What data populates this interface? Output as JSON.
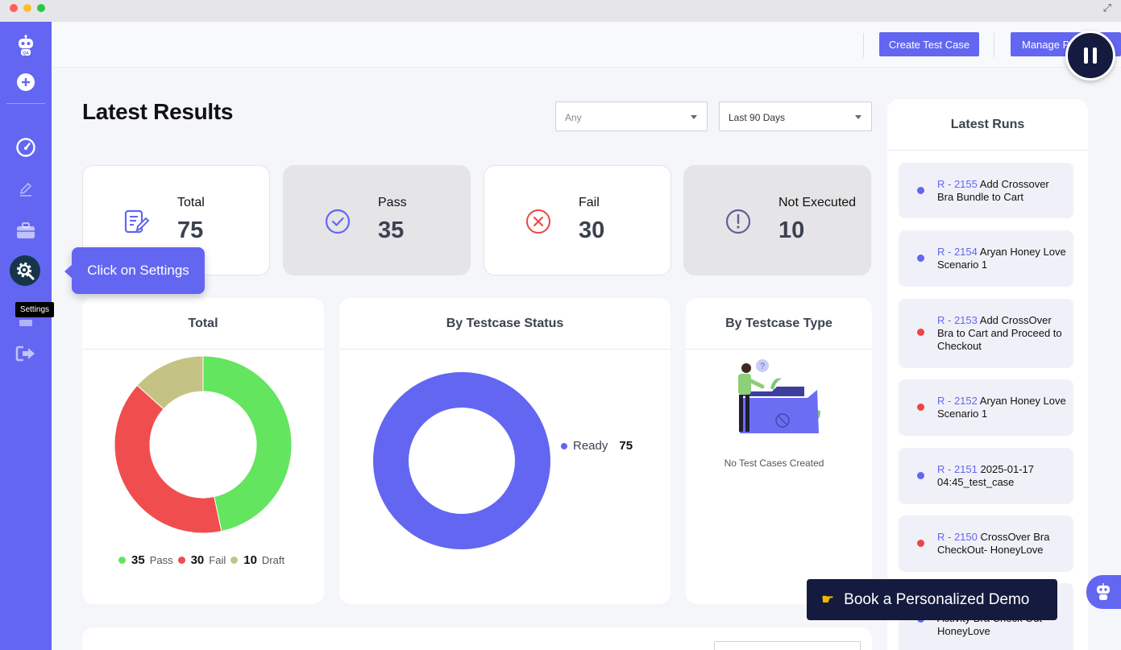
{
  "topbar": {
    "create_test_case": "Create Test Case",
    "manage_plans": "Manage Pl"
  },
  "page": {
    "title": "Latest Results"
  },
  "filters": {
    "type_select": "Any",
    "range_select": "Last 90 Days"
  },
  "stats": [
    {
      "label": "Total",
      "value": "75",
      "icon": "edit-document-icon"
    },
    {
      "label": "Pass",
      "value": "35",
      "icon": "check-circle-icon"
    },
    {
      "label": "Fail",
      "value": "30",
      "icon": "x-circle-icon"
    },
    {
      "label": "Not Executed",
      "value": "10",
      "icon": "exclamation-circle-icon"
    }
  ],
  "cards": {
    "total_title": "Total",
    "status_title": "By Testcase Status",
    "type_title": "By Testcase Type",
    "no_cases": "No Test Cases Created"
  },
  "chart_data": [
    {
      "type": "pie",
      "title": "Total",
      "categories": [
        "Pass",
        "Fail",
        "Draft"
      ],
      "values": [
        35,
        30,
        10
      ],
      "colors": [
        "#63e55f",
        "#f04e4e",
        "#c5c384"
      ],
      "legend": [
        {
          "value": "35",
          "label": "Pass"
        },
        {
          "value": "30",
          "label": "Fail"
        },
        {
          "value": "10",
          "label": "Draft"
        }
      ]
    },
    {
      "type": "pie",
      "title": "By Testcase Status",
      "categories": [
        "Ready"
      ],
      "values": [
        75
      ],
      "colors": [
        "#6366f1"
      ],
      "legend": [
        {
          "value": "75",
          "label": "Ready"
        }
      ]
    }
  ],
  "runs": {
    "title": "Latest Runs",
    "items": [
      {
        "id": "R - 2155",
        "name": "Add Crossover Bra Bundle to Cart",
        "status": "passed"
      },
      {
        "id": "R - 2154",
        "name": "Aryan Honey Love Scenario 1",
        "status": "passed"
      },
      {
        "id": "R - 2153",
        "name": "Add CrossOver Bra to Cart and Proceed to Checkout",
        "status": "failed"
      },
      {
        "id": "R - 2152",
        "name": "Aryan Honey Love Scenario 1",
        "status": "failed"
      },
      {
        "id": "R - 2151",
        "name": "2025-01-17 04:45_test_case",
        "status": "passed"
      },
      {
        "id": "R - 2150",
        "name": "CrossOver Bra CheckOut- HoneyLove",
        "status": "failed"
      },
      {
        "id": "",
        "name": "Activity Bra Check Out- HoneyLove",
        "status": "passed"
      }
    ]
  },
  "overlay": {
    "tooltip": "Click on Settings",
    "settings_label": "Settings",
    "demo": "Book a Personalized Demo"
  },
  "colors": {
    "accent": "#6366f1",
    "pass": "#63e55f",
    "fail": "#f04e4e",
    "draft": "#c5c384",
    "dark": "#151b3f"
  }
}
